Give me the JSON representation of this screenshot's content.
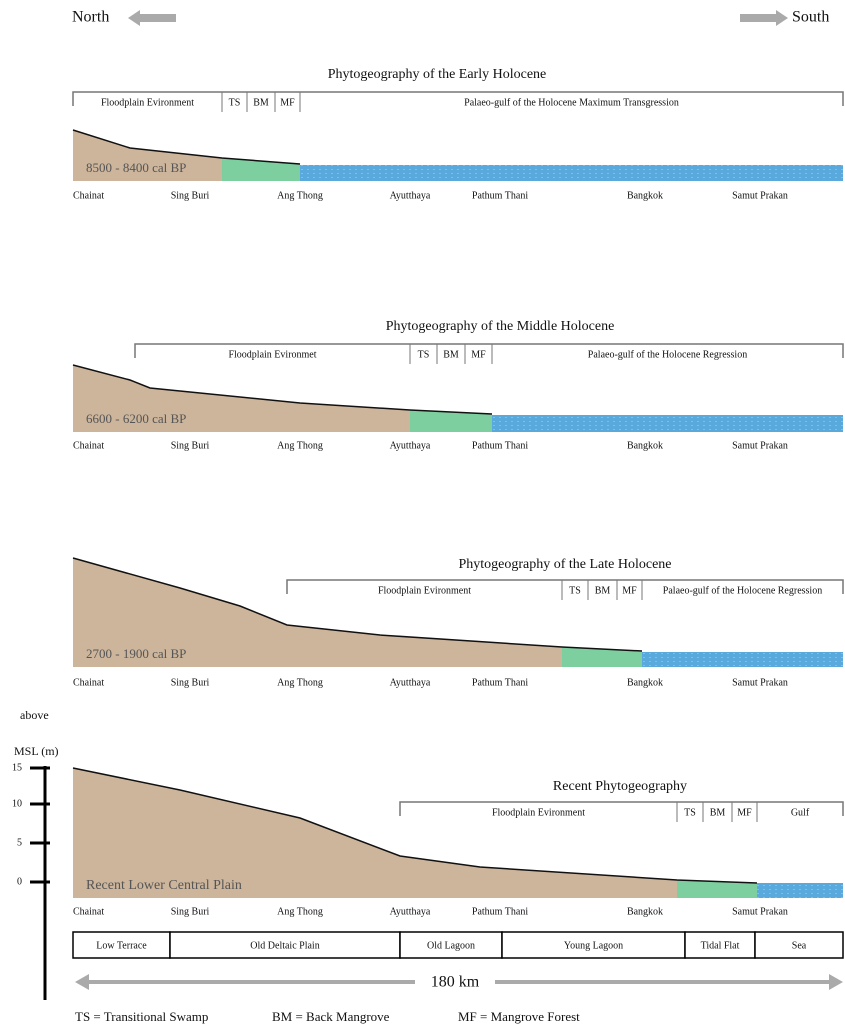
{
  "header": {
    "north": "North",
    "south": "South"
  },
  "panels": [
    {
      "title": "Phytogeography of the Early Holocene",
      "zones": [
        "Floodplain Evironment",
        "TS",
        "BM",
        "MF",
        "Palaeo-gulf of the Holocene Maximum Transgression"
      ],
      "period": "8500 - 8400 cal BP",
      "places": [
        "Chainat",
        "Sing Buri",
        "Ang Thong",
        "Ayutthaya",
        "Pathum Thani",
        "Bangkok",
        "Samut Prakan"
      ]
    },
    {
      "title": "Phytogeography of the Middle Holocene",
      "zones": [
        "Floodplain Evironmet",
        "TS",
        "BM",
        "MF",
        "Palaeo-gulf of the Holocene Regression"
      ],
      "period": "6600 - 6200 cal BP",
      "places": [
        "Chainat",
        "Sing Buri",
        "Ang Thong",
        "Ayutthaya",
        "Pathum Thani",
        "Bangkok",
        "Samut Prakan"
      ]
    },
    {
      "title": "Phytogeography of the Late Holocene",
      "zones": [
        "Floodplain Evironment",
        "TS",
        "BM",
        "MF",
        "Palaeo-gulf of the Holocene Regression"
      ],
      "period": "2700 - 1900 cal BP",
      "places": [
        "Chainat",
        "Sing Buri",
        "Ang Thong",
        "Ayutthaya",
        "Pathum Thani",
        "Bangkok",
        "Samut Prakan"
      ]
    },
    {
      "title": "Recent Phytogeography",
      "zones": [
        "Floodplain Evironment",
        "TS",
        "BM",
        "MF",
        "Gulf"
      ],
      "period": "Recent Lower Central Plain",
      "places": [
        "Chainat",
        "Sing Buri",
        "Ang Thong",
        "Ayutthaya",
        "Pathum Thani",
        "Bangkok",
        "Samut Prakan"
      ]
    }
  ],
  "axis": {
    "label_top": "above",
    "label_bottom": "MSL (m)",
    "ticks": [
      15,
      10,
      5,
      0
    ]
  },
  "units": [
    "Low Terrace",
    "Old Deltaic Plain",
    "Old Lagoon",
    "Young Lagoon",
    "Tidal Flat",
    "Sea"
  ],
  "distance": "180 km",
  "legend": [
    "TS = Transitional Swamp",
    "BM = Back Mangrove",
    "MF = Mangrove Forest"
  ]
}
